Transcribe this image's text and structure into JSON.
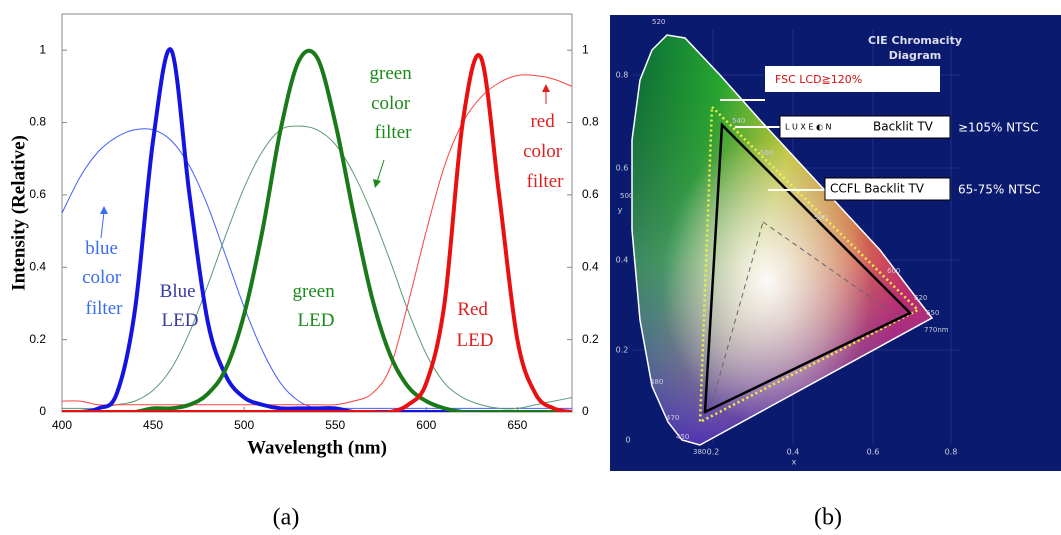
{
  "chart_data": {
    "type": "line",
    "x_label": "Wavelength (nm)",
    "y_label": "Intensity (Relative)",
    "x": [
      400,
      410,
      420,
      430,
      440,
      450,
      460,
      470,
      480,
      490,
      500,
      510,
      520,
      530,
      540,
      550,
      560,
      570,
      580,
      590,
      600,
      610,
      620,
      630,
      640,
      650,
      660,
      670,
      680
    ],
    "series": [
      {
        "name": "Blue LED",
        "color": "#1414e0",
        "linewidth": 4,
        "label_color": "#3a3aa0",
        "values": [
          0,
          0,
          0.01,
          0.05,
          0.28,
          0.75,
          1,
          0.6,
          0.25,
          0.1,
          0.04,
          0.02,
          0.01,
          0.01,
          0.01,
          0.01,
          0,
          0,
          0,
          0,
          0,
          0,
          0,
          0,
          0,
          0,
          0,
          0,
          0
        ]
      },
      {
        "name": "green LED",
        "color": "#1a7a1a",
        "linewidth": 4,
        "label_color": "#1a8a1a",
        "values": [
          0,
          0,
          0,
          0,
          0,
          0.01,
          0.01,
          0.02,
          0.05,
          0.12,
          0.27,
          0.5,
          0.78,
          0.97,
          0.98,
          0.8,
          0.55,
          0.32,
          0.16,
          0.07,
          0.03,
          0.01,
          0,
          0,
          0,
          0,
          0,
          0,
          0
        ]
      },
      {
        "name": "Red LED",
        "color": "#e81010",
        "linewidth": 4,
        "label_color": "#e02020",
        "values": [
          0,
          0,
          0,
          0,
          0,
          0,
          0,
          0,
          0,
          0,
          0,
          0,
          0,
          0,
          0,
          0,
          0,
          0,
          0,
          0.02,
          0.08,
          0.3,
          0.8,
          0.98,
          0.6,
          0.2,
          0.05,
          0.01,
          0
        ]
      },
      {
        "name": "blue color filter",
        "color": "#4060ff",
        "linewidth": 1,
        "label_color": "#3a6cf0",
        "values": [
          0.55,
          0.65,
          0.72,
          0.76,
          0.78,
          0.78,
          0.75,
          0.68,
          0.57,
          0.43,
          0.29,
          0.17,
          0.08,
          0.03,
          0.01,
          0.01,
          0.01,
          0.01,
          0.01,
          0.01,
          0.01,
          0.01,
          0.01,
          0.01,
          0.01,
          0.01,
          0.01,
          0.01,
          0.01
        ]
      },
      {
        "name": "green color filter",
        "color": "#5a9a72",
        "linewidth": 1,
        "label_color": "#1a8a1a",
        "values": [
          0.01,
          0.01,
          0.01,
          0.02,
          0.03,
          0.06,
          0.12,
          0.22,
          0.35,
          0.49,
          0.62,
          0.72,
          0.78,
          0.79,
          0.78,
          0.74,
          0.66,
          0.55,
          0.42,
          0.28,
          0.16,
          0.08,
          0.04,
          0.02,
          0.01,
          0.01,
          0.02,
          0.03,
          0.04
        ]
      },
      {
        "name": "red color filter",
        "color": "#ff4040",
        "linewidth": 1,
        "label_color": "#e02020",
        "values": [
          0.03,
          0.03,
          0.02,
          0.02,
          0.02,
          0.02,
          0.02,
          0.02,
          0.02,
          0.02,
          0.02,
          0.02,
          0.02,
          0.02,
          0.02,
          0.02,
          0.03,
          0.05,
          0.12,
          0.3,
          0.5,
          0.68,
          0.8,
          0.87,
          0.91,
          0.93,
          0.93,
          0.92,
          0.9
        ]
      }
    ],
    "xlim": [
      400,
      680
    ],
    "xticks": [
      400,
      450,
      500,
      550,
      600,
      650
    ],
    "ylim": [
      0,
      1.1
    ],
    "yticks": [
      0,
      0.2,
      0.4,
      0.6,
      0.8,
      1
    ],
    "y2lim": [
      0,
      1.1
    ],
    "y2ticks": [
      0,
      0.2,
      0.4,
      0.6,
      0.8,
      1
    ]
  },
  "captions": [
    "(a)",
    "(b)"
  ],
  "diagram": {
    "title_lines": [
      "CIE Chromacity",
      "Diagram"
    ],
    "fsc": "FSC LCD≧120%",
    "luxeon_logo": "L U X E ◐ N",
    "luxeon": "Backlit TV",
    "luxeon_ntsc": "≥105% NTSC",
    "ccfl": "CCFL Backlit TV",
    "ccfl_ntsc": "65-75% NTSC",
    "wavelengths": [
      "520",
      "540",
      "560",
      "580",
      "600",
      "620",
      "650",
      "770nm",
      "500",
      "480",
      "470",
      "450",
      "380"
    ],
    "xticks": [
      "0.2",
      "0.4",
      "0.6",
      "0.8"
    ],
    "yticks": [
      "0.8",
      "0.6",
      "0.4",
      "0.2",
      "0"
    ],
    "x_label": "x",
    "y_label": "y"
  }
}
